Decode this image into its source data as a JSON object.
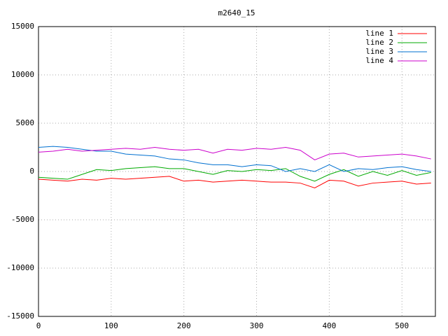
{
  "chart_data": {
    "type": "line",
    "title": "m2640_15",
    "x": [
      0,
      20,
      40,
      60,
      80,
      100,
      120,
      140,
      160,
      180,
      200,
      220,
      240,
      260,
      280,
      300,
      320,
      340,
      360,
      380,
      400,
      420,
      440,
      460,
      480,
      500,
      520,
      540
    ],
    "series": [
      {
        "name": "line 1",
        "color": "#ff0000",
        "values": [
          -800,
          -900,
          -1000,
          -800,
          -900,
          -700,
          -800,
          -700,
          -600,
          -500,
          -1000,
          -900,
          -1100,
          -1000,
          -900,
          -1000,
          -1100,
          -1100,
          -1200,
          -1700,
          -900,
          -1000,
          -1500,
          -1200,
          -1100,
          -1000,
          -1300,
          -1200
        ]
      },
      {
        "name": "line 2",
        "color": "#00aa00",
        "values": [
          -600,
          -700,
          -800,
          -300,
          200,
          100,
          300,
          400,
          500,
          300,
          300,
          0,
          -300,
          100,
          0,
          200,
          100,
          300,
          -500,
          -1000,
          -300,
          200,
          -500,
          0,
          -400,
          100,
          -400,
          -100
        ]
      },
      {
        "name": "line 3",
        "color": "#0070d0",
        "values": [
          2500,
          2600,
          2500,
          2300,
          2100,
          2100,
          1800,
          1700,
          1600,
          1300,
          1200,
          900,
          700,
          700,
          500,
          700,
          600,
          0,
          300,
          0,
          700,
          0,
          300,
          200,
          400,
          500,
          200,
          0
        ]
      },
      {
        "name": "line 4",
        "color": "#cc00cc",
        "values": [
          2000,
          2100,
          2300,
          2100,
          2200,
          2300,
          2400,
          2300,
          2500,
          2300,
          2200,
          2300,
          1900,
          2300,
          2200,
          2400,
          2300,
          2500,
          2200,
          1200,
          1800,
          1900,
          1500,
          1600,
          1700,
          1800,
          1600,
          1300
        ]
      }
    ],
    "xlim": [
      0,
      546
    ],
    "ylim": [
      -15000,
      15000
    ],
    "xticks": [
      0,
      100,
      200,
      300,
      400,
      500
    ],
    "yticks": [
      -15000,
      -10000,
      -5000,
      0,
      5000,
      10000,
      15000
    ],
    "grid": true,
    "legend": "top-right"
  }
}
